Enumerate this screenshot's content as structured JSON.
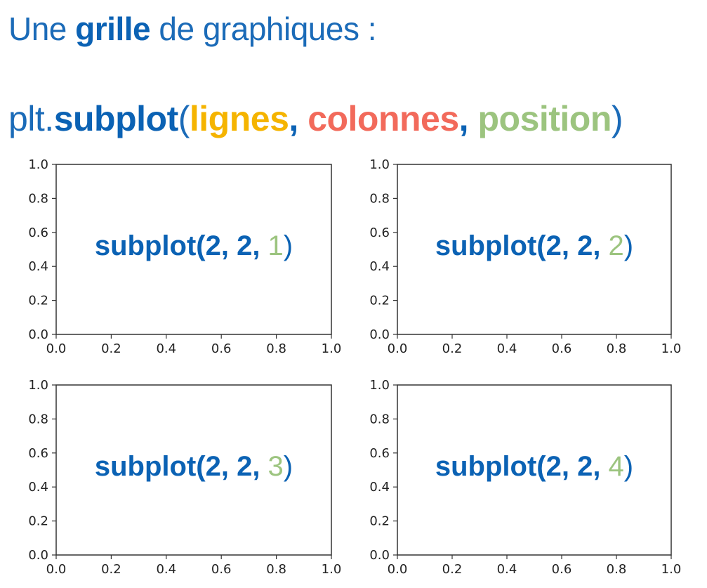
{
  "header": {
    "title_part1": "Une ",
    "title_bold": "grille",
    "title_part2": " de graphiques :"
  },
  "code_line": {
    "prefix": "plt.",
    "function": "subplot",
    "open_paren": "(",
    "arg_rows": "lignes",
    "comma1": ",",
    "arg_cols": "colonnes",
    "comma2": ",",
    "arg_pos": "position",
    "close_paren": ")"
  },
  "colors": {
    "blue": "#0b62b4",
    "rows_yellow": "#f5b400",
    "cols_red": "#f26a5b",
    "pos_green": "#9cc47f",
    "axes": "#333333"
  },
  "chart_data": [
    {
      "type": "scatter",
      "x": [],
      "y": [],
      "xlim": [
        0,
        1
      ],
      "ylim": [
        0,
        1
      ],
      "xticks": [
        "0.0",
        "0.2",
        "0.4",
        "0.6",
        "0.8",
        "1.0"
      ],
      "yticks": [
        "0.0",
        "0.2",
        "0.4",
        "0.6",
        "0.8",
        "1.0"
      ],
      "annotation_prefix": "subplot(2, 2, ",
      "annotation_pos": "1",
      "annotation_suffix": ")",
      "grid": false
    },
    {
      "type": "scatter",
      "x": [],
      "y": [],
      "xlim": [
        0,
        1
      ],
      "ylim": [
        0,
        1
      ],
      "xticks": [
        "0.0",
        "0.2",
        "0.4",
        "0.6",
        "0.8",
        "1.0"
      ],
      "yticks": [
        "0.0",
        "0.2",
        "0.4",
        "0.6",
        "0.8",
        "1.0"
      ],
      "annotation_prefix": "subplot(2, 2, ",
      "annotation_pos": "2",
      "annotation_suffix": ")",
      "grid": false
    },
    {
      "type": "scatter",
      "x": [],
      "y": [],
      "xlim": [
        0,
        1
      ],
      "ylim": [
        0,
        1
      ],
      "xticks": [
        "0.0",
        "0.2",
        "0.4",
        "0.6",
        "0.8",
        "1.0"
      ],
      "yticks": [
        "0.0",
        "0.2",
        "0.4",
        "0.6",
        "0.8",
        "1.0"
      ],
      "annotation_prefix": "subplot(2, 2, ",
      "annotation_pos": "3",
      "annotation_suffix": ")",
      "grid": false
    },
    {
      "type": "scatter",
      "x": [],
      "y": [],
      "xlim": [
        0,
        1
      ],
      "ylim": [
        0,
        1
      ],
      "xticks": [
        "0.0",
        "0.2",
        "0.4",
        "0.6",
        "0.8",
        "1.0"
      ],
      "yticks": [
        "0.0",
        "0.2",
        "0.4",
        "0.6",
        "0.8",
        "1.0"
      ],
      "annotation_prefix": "subplot(2, 2, ",
      "annotation_pos": "4",
      "annotation_suffix": ")",
      "grid": false
    }
  ]
}
